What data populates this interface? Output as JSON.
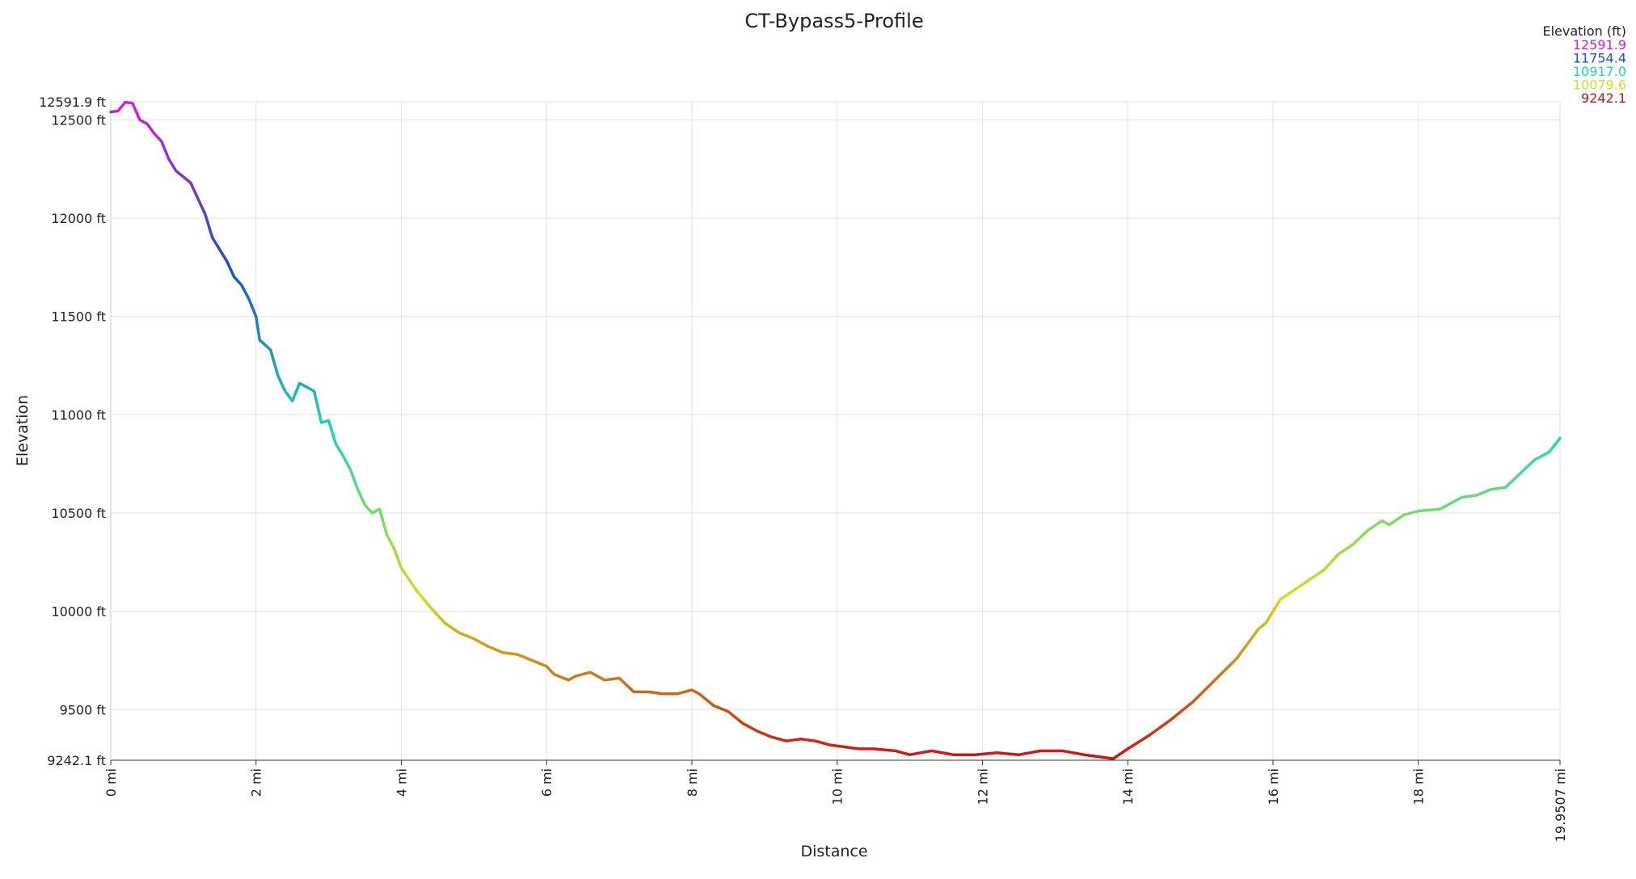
{
  "chart_data": {
    "type": "line",
    "title": "CT-Bypass5-Profile",
    "x_label": "Distance",
    "y_label": "Elevation",
    "x": [
      0,
      0.1,
      0.2,
      0.3,
      0.4,
      0.5,
      0.6,
      0.7,
      0.8,
      0.9,
      1.0,
      1.1,
      1.2,
      1.3,
      1.4,
      1.5,
      1.6,
      1.7,
      1.8,
      1.9,
      2.0,
      2.05,
      2.2,
      2.3,
      2.4,
      2.5,
      2.6,
      2.7,
      2.8,
      2.9,
      3.0,
      3.1,
      3.2,
      3.3,
      3.4,
      3.5,
      3.6,
      3.7,
      3.8,
      3.9,
      4.0,
      4.2,
      4.4,
      4.6,
      4.8,
      5.0,
      5.2,
      5.4,
      5.6,
      5.8,
      6.0,
      6.1,
      6.3,
      6.4,
      6.6,
      6.8,
      7.0,
      7.2,
      7.4,
      7.6,
      7.8,
      8.0,
      8.1,
      8.3,
      8.5,
      8.7,
      8.9,
      9.1,
      9.3,
      9.5,
      9.7,
      9.9,
      10.1,
      10.3,
      10.5,
      10.8,
      11.0,
      11.3,
      11.6,
      11.9,
      12.2,
      12.5,
      12.8,
      13.1,
      13.4,
      13.6,
      13.8,
      14.0,
      14.3,
      14.6,
      14.9,
      15.2,
      15.5,
      15.8,
      15.9,
      16.1,
      16.3,
      16.5,
      16.7,
      16.9,
      17.1,
      17.3,
      17.5,
      17.6,
      17.8,
      18.0,
      18.3,
      18.6,
      18.8,
      19.0,
      19.2,
      19.4,
      19.6,
      19.8,
      19.9507
    ],
    "values": [
      12540,
      12545,
      12590,
      12585,
      12500,
      12480,
      12430,
      12390,
      12300,
      12240,
      12210,
      12180,
      12100,
      12020,
      11900,
      11840,
      11780,
      11700,
      11660,
      11590,
      11500,
      11380,
      11330,
      11200,
      11120,
      11070,
      11160,
      11140,
      11120,
      10960,
      10970,
      10850,
      10790,
      10720,
      10620,
      10540,
      10500,
      10520,
      10390,
      10320,
      10220,
      10110,
      10020,
      9940,
      9890,
      9860,
      9820,
      9790,
      9780,
      9750,
      9720,
      9680,
      9650,
      9670,
      9690,
      9650,
      9660,
      9590,
      9590,
      9580,
      9580,
      9600,
      9580,
      9520,
      9490,
      9430,
      9390,
      9360,
      9340,
      9350,
      9340,
      9320,
      9310,
      9300,
      9300,
      9290,
      9270,
      9290,
      9270,
      9270,
      9280,
      9270,
      9290,
      9290,
      9270,
      9260,
      9250,
      9300,
      9370,
      9450,
      9540,
      9650,
      9760,
      9910,
      9940,
      10060,
      10110,
      10160,
      10210,
      10290,
      10340,
      10410,
      10460,
      10440,
      10490,
      10510,
      10520,
      10580,
      10590,
      10620,
      10630,
      10700,
      10770,
      10810,
      10880
    ],
    "xlim": [
      0,
      19.9507
    ],
    "xticks": [
      {
        "value": 0,
        "label": "0 mi"
      },
      {
        "value": 2,
        "label": "2 mi"
      },
      {
        "value": 4,
        "label": "4 mi"
      },
      {
        "value": 6,
        "label": "6 mi"
      },
      {
        "value": 8,
        "label": "8 mi"
      },
      {
        "value": 10,
        "label": "10 mi"
      },
      {
        "value": 12,
        "label": "12 mi"
      },
      {
        "value": 14,
        "label": "14 mi"
      },
      {
        "value": 16,
        "label": "16 mi"
      },
      {
        "value": 18,
        "label": "18 mi"
      },
      {
        "value": 19.9507,
        "label": "19.9507 mi"
      }
    ],
    "ylim": [
      9242.1,
      12591.9
    ],
    "yticks": [
      {
        "value": 9242.1,
        "label": "9242.1 ft"
      },
      {
        "value": 9500,
        "label": "9500 ft"
      },
      {
        "value": 10000,
        "label": "10000 ft"
      },
      {
        "value": 10500,
        "label": "10500 ft"
      },
      {
        "value": 11000,
        "label": "11000 ft"
      },
      {
        "value": 11500,
        "label": "11500 ft"
      },
      {
        "value": 12000,
        "label": "12000 ft"
      },
      {
        "value": 12500,
        "label": "12500 ft"
      },
      {
        "value": 12591.9,
        "label": "12591.9 ft"
      }
    ],
    "grid": true,
    "color_scale": {
      "title": "Elevation (ft)",
      "values": [
        12591.9,
        11754.4,
        10917.0,
        10079.6,
        9242.1
      ],
      "value_labels": [
        "12591.9",
        "11754.4",
        "10917.0",
        "10079.6",
        "9242.1"
      ],
      "colors": [
        "#d81ed0",
        "#1c52c4",
        "#1ed6b8",
        "#d2de1e",
        "#cc1212"
      ]
    }
  }
}
